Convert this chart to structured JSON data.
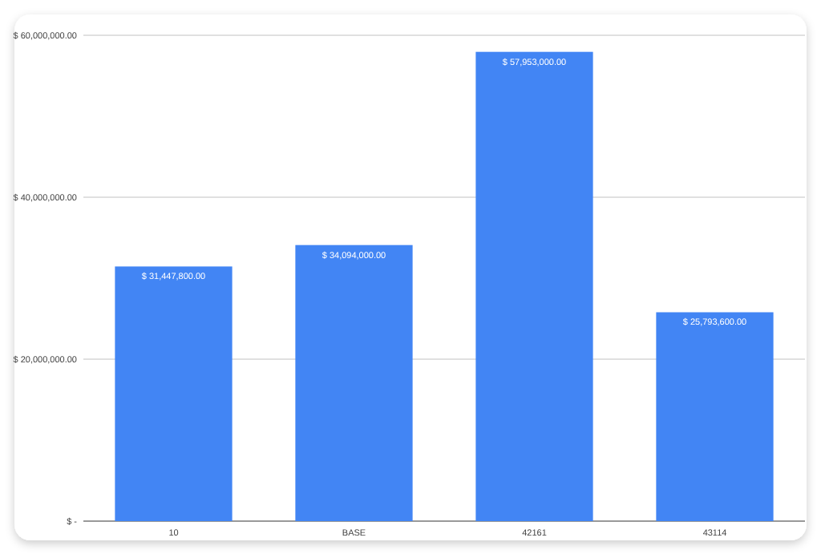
{
  "chart_data": {
    "type": "bar",
    "categories": [
      "10",
      "BASE",
      "42161",
      "43114"
    ],
    "series": [
      {
        "color": "#4285f4",
        "values": [
          31447800,
          34094000,
          57953000,
          25793600
        ]
      }
    ],
    "value_labels": [
      "$ 31,447,800.00",
      "$ 34,094,000.00",
      "$ 57,953,000.00",
      "$ 25,793,600.00"
    ],
    "ylim": [
      0,
      60000000
    ],
    "yticks": [
      {
        "value": 0,
        "label": "$ -"
      },
      {
        "value": 20000000,
        "label": "$ 20,000,000.00"
      },
      {
        "value": 40000000,
        "label": "$ 40,000,000.00"
      },
      {
        "value": 60000000,
        "label": "$ 60,000,000.00"
      }
    ],
    "grid": "y"
  }
}
